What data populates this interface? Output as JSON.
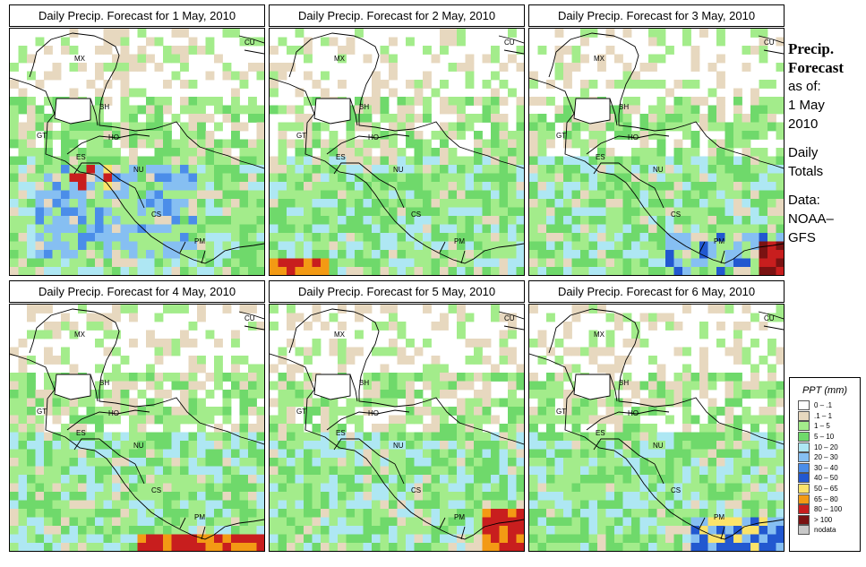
{
  "panels": [
    {
      "title": "Daily Precip. Forecast for  1 May, 2010",
      "profile": "d1"
    },
    {
      "title": "Daily Precip. Forecast for  2 May, 2010",
      "profile": "d2"
    },
    {
      "title": "Daily Precip. Forecast for  3 May, 2010",
      "profile": "d3"
    },
    {
      "title": "Daily Precip. Forecast for  4 May, 2010",
      "profile": "d4"
    },
    {
      "title": "Daily Precip. Forecast for  5 May, 2010",
      "profile": "d5"
    },
    {
      "title": "Daily Precip. Forecast for  6 May, 2010",
      "profile": "d6"
    }
  ],
  "countries": [
    "MX",
    "BH",
    "GT",
    "HO",
    "ES",
    "NU",
    "CS",
    "PM",
    "CU"
  ],
  "sidebar": {
    "heading_line1": "Precip.",
    "heading_line2": "Forecast",
    "as_of_label": "as of:",
    "date_line1": "1 May",
    "date_line2": "2010",
    "totals_line1": "Daily",
    "totals_line2": "Totals",
    "source_line1": "Data:",
    "source_line2": "NOAA–",
    "source_line3": "GFS"
  },
  "legend": {
    "title": "PPT (mm)",
    "items": [
      {
        "label": "0 – .1",
        "color": "#ffffff"
      },
      {
        "label": ".1 – 1",
        "color": "#e7d8bf"
      },
      {
        "label": "1 – 5",
        "color": "#a3ec8b"
      },
      {
        "label": "5 – 10",
        "color": "#6fd96b"
      },
      {
        "label": "10 – 20",
        "color": "#aee7f3"
      },
      {
        "label": "20 – 30",
        "color": "#86bff2"
      },
      {
        "label": "30 – 40",
        "color": "#4b8de9"
      },
      {
        "label": "40 – 50",
        "color": "#2258d0"
      },
      {
        "label": "50 – 65",
        "color": "#fbe36a"
      },
      {
        "label": "65 – 80",
        "color": "#f39a14"
      },
      {
        "label": "80 – 100",
        "color": "#c81e1e"
      },
      {
        "label": "> 100",
        "color": "#7a1212"
      },
      {
        "label": "nodata",
        "color": "#c8c8c8"
      }
    ]
  }
}
